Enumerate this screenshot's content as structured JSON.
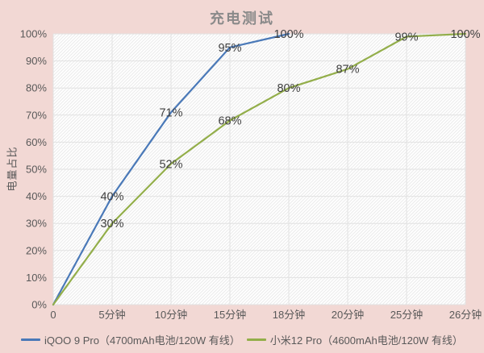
{
  "title": "充电测试",
  "colors": {
    "background": "#f2d8d4",
    "plot_background": "#ffffff",
    "hatch": "#ebebeb",
    "grid": "#e2e2e2",
    "title_text": "#8a8a8a",
    "axis_text": "#595959",
    "data_label_text": "#3f3f3f",
    "series_blue": "#4a79b8",
    "series_green": "#93ae4a"
  },
  "chart_data": {
    "type": "line",
    "title": "充电测试",
    "xlabel": "",
    "ylabel": "电量占比",
    "ylim": [
      0,
      100
    ],
    "y_tick_step": 10,
    "y_tick_labels": [
      "0%",
      "10%",
      "20%",
      "30%",
      "40%",
      "50%",
      "60%",
      "70%",
      "80%",
      "90%",
      "100%"
    ],
    "grid": true,
    "legend_position": "bottom",
    "categories": [
      "0",
      "5分钟",
      "10分钟",
      "15分钟",
      "18分钟",
      "20分钟",
      "25分钟",
      "26分钟"
    ],
    "series": [
      {
        "name": "iQOO 9 Pro（4700mAh电池/120W 有线）",
        "color": "#4a79b8",
        "values": [
          0,
          40,
          71,
          95,
          100
        ],
        "point_labels": [
          "",
          "40%",
          "71%",
          "95%",
          "100%"
        ]
      },
      {
        "name": "小米12 Pro（4600mAh电池/120W 有线）",
        "color": "#93ae4a",
        "values": [
          0,
          30,
          52,
          68,
          80,
          87,
          99,
          100
        ],
        "point_labels": [
          "",
          "30%",
          "52%",
          "68%",
          "80%",
          "87%",
          "99%",
          "100%"
        ]
      }
    ]
  }
}
